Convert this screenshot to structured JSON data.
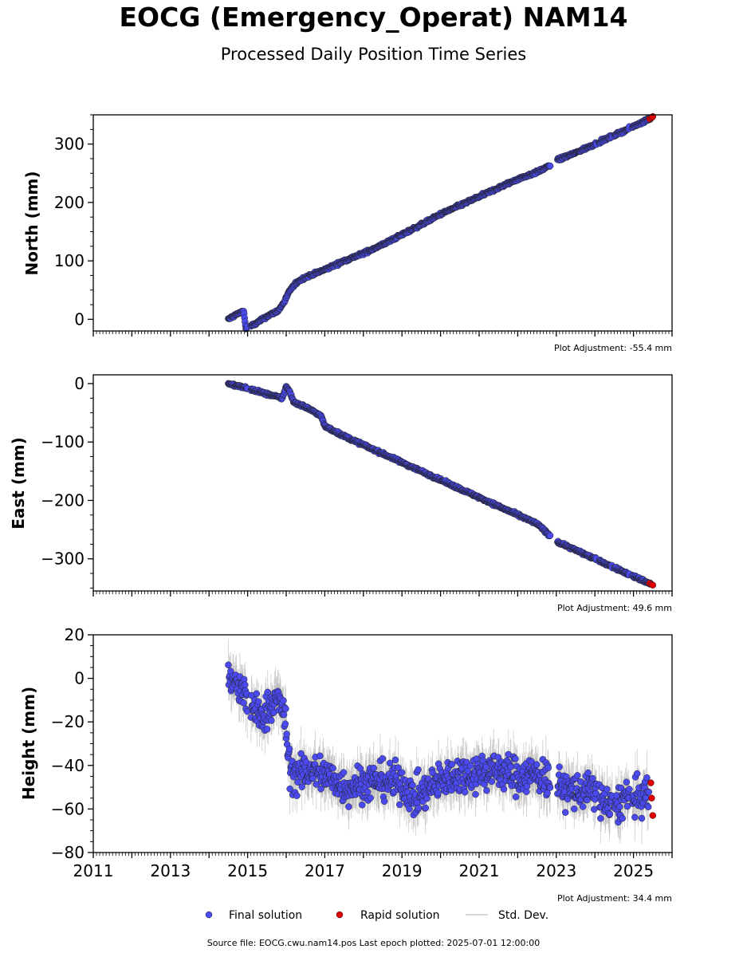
{
  "title": "EOCG (Emergency_Operat) NAM14",
  "subtitle": "Processed Daily Position Time Series",
  "footer": "Source file: EOCG.cwu.nam14.pos  Last epoch plotted: 2025-07-01 12:00:00",
  "legend": {
    "final": "Final solution",
    "rapid": "Rapid solution",
    "std": "Std. Dev."
  },
  "colors": {
    "final": "#4a4af0",
    "rapid": "#e00000",
    "std": "#a0a0a0"
  },
  "chart_data": [
    {
      "type": "scatter",
      "ylabel": "North (mm)",
      "adjustment": "Plot Adjustment: -55.4 mm",
      "xlim": [
        2011,
        2026
      ],
      "ylim": [
        -20,
        350
      ],
      "yticks": [
        0,
        100,
        200,
        300
      ],
      "ytick_labels": [
        "0",
        "100",
        "200",
        "300"
      ],
      "series": [
        {
          "name": "Final solution",
          "x": [
            2014.5,
            2014.7,
            2014.9,
            2014.95,
            2015.2,
            2015.5,
            2015.8,
            2015.95,
            2016.1,
            2016.3,
            2016.5,
            2017.0,
            2017.5,
            2018.0,
            2018.5,
            2019.0,
            2019.5,
            2020.0,
            2020.5,
            2021.0,
            2021.5,
            2022.0,
            2022.5,
            2022.8,
            2023.0,
            2023.5,
            2024.0,
            2024.5,
            2025.0,
            2025.45
          ],
          "y": [
            0,
            8,
            14,
            -15,
            -8,
            5,
            15,
            30,
            50,
            65,
            72,
            85,
            100,
            113,
            128,
            145,
            162,
            180,
            195,
            210,
            225,
            240,
            252,
            262,
            272,
            285,
            300,
            315,
            330,
            345
          ]
        },
        {
          "name": "Rapid solution",
          "x": [
            2025.42,
            2025.47,
            2025.5
          ],
          "y": [
            343,
            345,
            347
          ]
        }
      ]
    },
    {
      "type": "scatter",
      "ylabel": "East (mm)",
      "adjustment": "Plot Adjustment: 49.6 mm",
      "xlim": [
        2011,
        2026
      ],
      "ylim": [
        -355,
        15
      ],
      "yticks": [
        0,
        -100,
        -200,
        -300
      ],
      "ytick_labels": [
        "0",
        "−100",
        "−200",
        "−300"
      ],
      "series": [
        {
          "name": "Final solution",
          "x": [
            2014.5,
            2014.8,
            2015.0,
            2015.2,
            2015.5,
            2015.9,
            2016.0,
            2016.1,
            2016.2,
            2016.5,
            2016.9,
            2017.0,
            2017.5,
            2018.0,
            2018.5,
            2019.0,
            2019.5,
            2020.0,
            2020.5,
            2021.0,
            2021.5,
            2022.0,
            2022.5,
            2022.8,
            2023.0,
            2023.5,
            2024.0,
            2024.5,
            2025.0,
            2025.45
          ],
          "y": [
            0,
            -5,
            -8,
            -12,
            -18,
            -25,
            -5,
            -15,
            -32,
            -40,
            -55,
            -73,
            -90,
            -105,
            -120,
            -135,
            -150,
            -165,
            -180,
            -195,
            -210,
            -225,
            -240,
            -258,
            -270,
            -285,
            -300,
            -315,
            -330,
            -343
          ]
        },
        {
          "name": "Rapid solution",
          "x": [
            2025.42,
            2025.47,
            2025.5
          ],
          "y": [
            -342,
            -344,
            -345
          ]
        }
      ]
    },
    {
      "type": "scatter",
      "ylabel": "Height (mm)",
      "adjustment": "Plot Adjustment: 34.4 mm",
      "xlim": [
        2011,
        2026
      ],
      "ylim": [
        -80,
        20
      ],
      "yticks": [
        20,
        0,
        -20,
        -40,
        -60,
        -80
      ],
      "ytick_labels": [
        "20",
        "0",
        "−20",
        "−40",
        "−60",
        "−80"
      ],
      "xticks": [
        2011,
        2013,
        2015,
        2017,
        2019,
        2021,
        2023,
        2025
      ],
      "xtick_labels": [
        "2011",
        "2013",
        "2015",
        "2017",
        "2019",
        "2021",
        "2023",
        "2025"
      ],
      "series": [
        {
          "name": "Final solution",
          "x": [
            2014.5,
            2014.7,
            2014.9,
            2015.1,
            2015.3,
            2015.5,
            2015.7,
            2015.9,
            2016.0,
            2016.1,
            2016.3,
            2016.6,
            2017.0,
            2017.5,
            2018.0,
            2018.5,
            2019.0,
            2019.3,
            2019.6,
            2020.0,
            2020.5,
            2021.0,
            2021.5,
            2022.0,
            2022.3,
            2022.7,
            2023.1,
            2023.5,
            2024.0,
            2024.4,
            2024.8,
            2025.2,
            2025.4
          ],
          "y": [
            0,
            -3,
            -8,
            -12,
            -18,
            -15,
            -10,
            -12,
            -25,
            -42,
            -45,
            -42,
            -44,
            -50,
            -48,
            -47,
            -48,
            -55,
            -52,
            -47,
            -44,
            -43,
            -42,
            -45,
            -44,
            -45,
            -50,
            -52,
            -52,
            -60,
            -55,
            -55,
            -53
          ]
        },
        {
          "name": "Rapid solution",
          "x": [
            2025.45,
            2025.47,
            2025.5
          ],
          "y": [
            -48,
            -55,
            -63
          ]
        }
      ]
    }
  ]
}
